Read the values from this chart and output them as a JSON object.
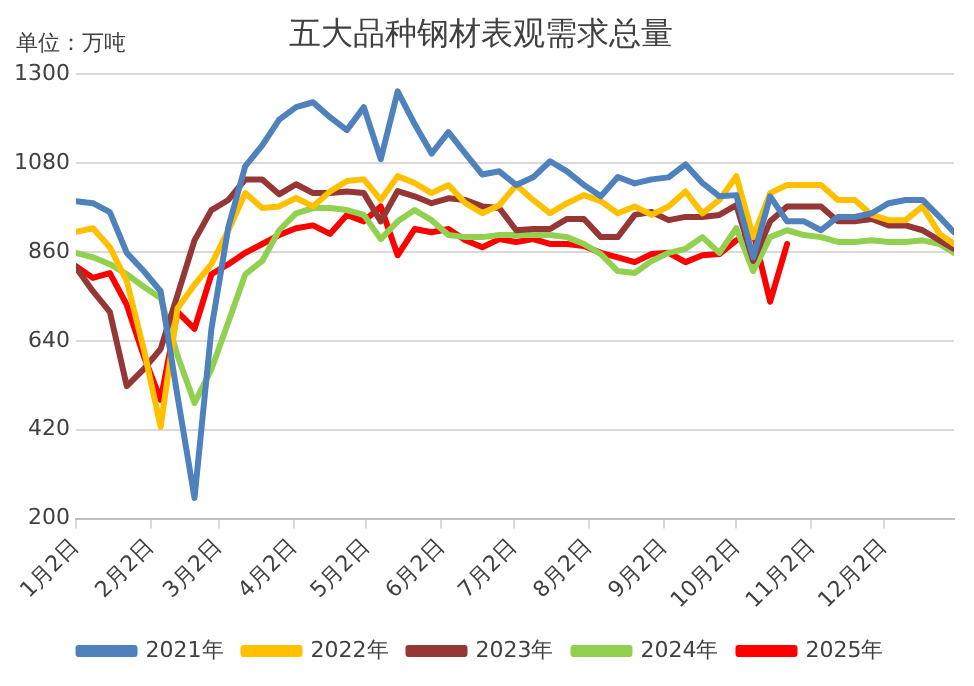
{
  "chart_data": {
    "type": "line",
    "title": "五大品种钢材表观需求总量",
    "annotations": [
      "单位：万吨"
    ],
    "x": [
      "--01-02",
      "--01-09",
      "--01-16",
      "--01-23",
      "--01-30",
      "--02-06",
      "--02-13",
      "--02-20",
      "--02-27",
      "--03-06",
      "--03-13",
      "--03-20",
      "--03-27",
      "--04-03",
      "--04-10",
      "--04-17",
      "--04-24",
      "--05-01",
      "--05-08",
      "--05-15",
      "--05-22",
      "--05-29",
      "--06-05",
      "--06-12",
      "--06-19",
      "--06-26",
      "--07-03",
      "--07-10",
      "--07-17",
      "--07-24",
      "--07-31",
      "--08-07",
      "--08-14",
      "--08-21",
      "--08-28",
      "--09-04",
      "--09-11",
      "--09-18",
      "--09-25",
      "--10-02",
      "--10-09",
      "--10-16",
      "--10-23",
      "--10-30",
      "--11-06",
      "--11-13",
      "--11-20",
      "--11-27",
      "--12-04",
      "--12-11",
      "--12-18",
      "--12-25",
      "--12-31"
    ],
    "series": [
      {
        "name": "2021年",
        "color": "#4f81bd",
        "values": [
          986,
          981,
          959,
          858,
          813,
          763,
          502,
          251,
          670,
          922,
          1073,
          1124,
          1188,
          1219,
          1231,
          1194,
          1162,
          1219,
          1090,
          1258,
          1177,
          1104,
          1157,
          1104,
          1052,
          1060,
          1026,
          1045,
          1085,
          1060,
          1026,
          998,
          1046,
          1030,
          1040,
          1045,
          1077,
          1031,
          998,
          1001,
          847,
          998,
          936,
          936,
          914,
          947,
          947,
          956,
          981,
          989,
          989,
          947,
          909
        ]
      },
      {
        "name": "2022年",
        "color": "#ffc000",
        "values": [
          910,
          919,
          872,
          788,
          620,
          427,
          721,
          779,
          830,
          914,
          1006,
          969,
          973,
          994,
          973,
          1010,
          1036,
          1040,
          989,
          1048,
          1031,
          1006,
          1026,
          981,
          956,
          976,
          1026,
          989,
          956,
          981,
          1001,
          986,
          956,
          973,
          952,
          973,
          1010,
          956,
          989,
          1048,
          897,
          1006,
          1026,
          1026,
          1026,
          989,
          989,
          952,
          939,
          939,
          973,
          905,
          880
        ]
      },
      {
        "name": "2023年",
        "color": "#953735",
        "values": [
          822,
          763,
          712,
          528,
          570,
          620,
          754,
          889,
          964,
          989,
          1040,
          1040,
          1003,
          1028,
          1006,
          1006,
          1010,
          1006,
          936,
          1011,
          998,
          981,
          993,
          989,
          973,
          969,
          914,
          917,
          917,
          942,
          942,
          897,
          897,
          952,
          959,
          939,
          947,
          947,
          952,
          976,
          838,
          936,
          973,
          973,
          973,
          936,
          936,
          942,
          926,
          926,
          914,
          889,
          868
        ]
      },
      {
        "name": "2024年",
        "color": "#92d050",
        "values": [
          858,
          847,
          830,
          805,
          774,
          746,
          603,
          486,
          570,
          687,
          805,
          838,
          914,
          956,
          969,
          969,
          964,
          952,
          892,
          936,
          964,
          939,
          902,
          897,
          897,
          902,
          902,
          902,
          902,
          897,
          880,
          855,
          813,
          808,
          838,
          858,
          868,
          897,
          858,
          919,
          813,
          897,
          914,
          902,
          897,
          885,
          885,
          889,
          885,
          885,
          889,
          880,
          858
        ]
      },
      {
        "name": "2025年",
        "color": "#ff0000",
        "values": [
          825,
          796,
          808,
          729,
          603,
          494,
          712,
          670,
          805,
          830,
          858,
          880,
          902,
          919,
          926,
          905,
          952,
          936,
          973,
          852,
          917,
          909,
          917,
          889,
          872,
          892,
          885,
          892,
          880,
          880,
          875,
          858,
          847,
          835,
          855,
          858,
          835,
          852,
          855,
          889,
          909,
          737,
          880,
          null,
          null,
          null,
          null,
          null,
          null,
          null,
          null,
          null,
          null
        ]
      }
    ],
    "xlim": [
      "--01-02",
      "--12-31"
    ],
    "xticks": [
      {
        "value": "--01-02",
        "label": "1月2日"
      },
      {
        "value": "--02-02",
        "label": "2月2日"
      },
      {
        "value": "--03-02",
        "label": "3月2日"
      },
      {
        "value": "--04-02",
        "label": "4月2日"
      },
      {
        "value": "--05-02",
        "label": "5月2日"
      },
      {
        "value": "--06-02",
        "label": "6月2日"
      },
      {
        "value": "--07-02",
        "label": "7月2日"
      },
      {
        "value": "--08-02",
        "label": "8月2日"
      },
      {
        "value": "--09-02",
        "label": "9月2日"
      },
      {
        "value": "--10-02",
        "label": "10月2日"
      },
      {
        "value": "--11-02",
        "label": "11月2日"
      },
      {
        "value": "--12-02",
        "label": "12月2日"
      }
    ],
    "ylim": [
      200,
      1300
    ],
    "yticks": [
      200,
      420,
      640,
      860,
      1080,
      1300
    ],
    "grid": "y",
    "legend": "bottom",
    "marker": "none",
    "line_style": "solid"
  }
}
